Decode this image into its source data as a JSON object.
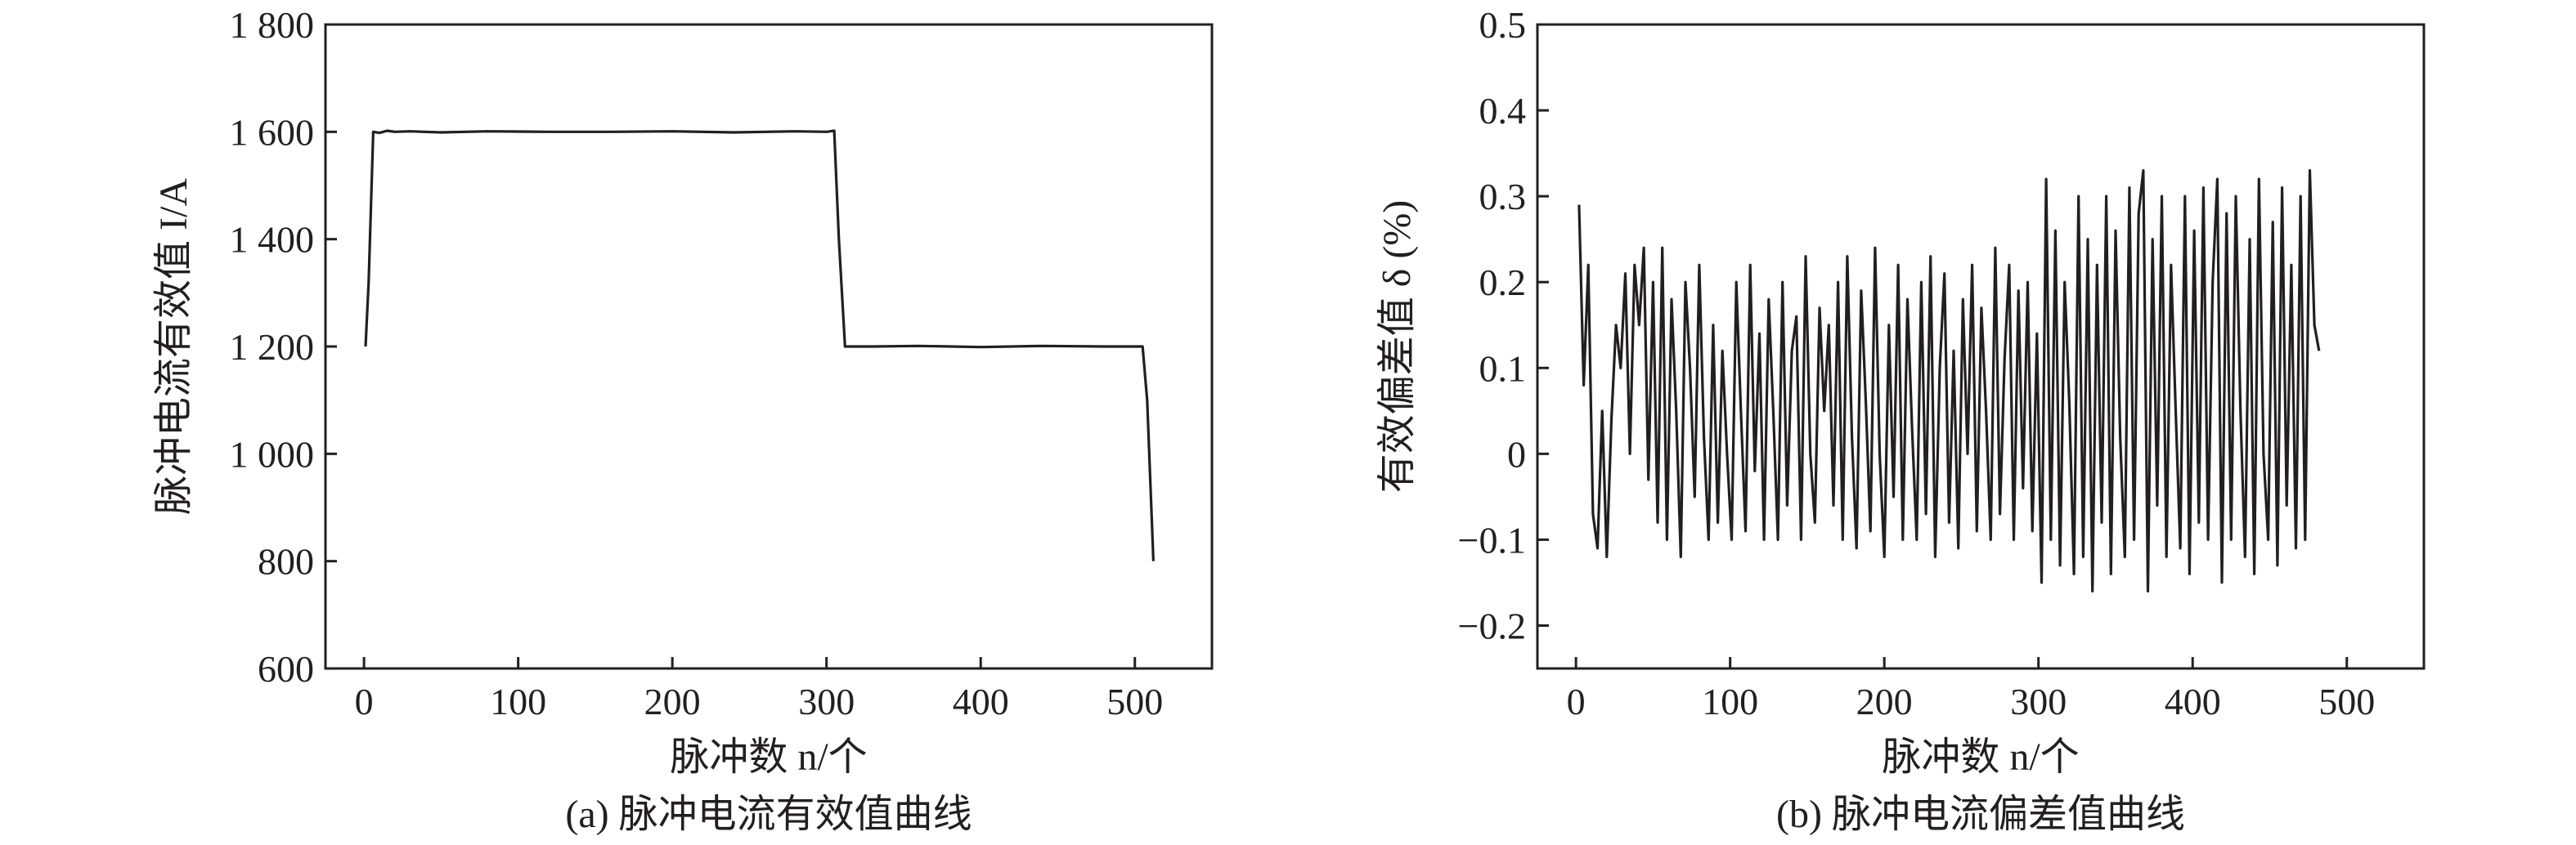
{
  "chart_data": [
    {
      "type": "line",
      "caption": "(a) 脉冲电流有效值曲线",
      "xlabel": "脉冲数 n/个",
      "ylabel": "脉冲电流有效值 I/A",
      "xlim": [
        -25,
        550
      ],
      "ylim": [
        600,
        1800
      ],
      "xticks": [
        0,
        100,
        200,
        300,
        400,
        500
      ],
      "xtick_labels": [
        "0",
        "100",
        "200",
        "300",
        "400",
        "500"
      ],
      "yticks": [
        600,
        800,
        1000,
        1200,
        1400,
        1600,
        1800
      ],
      "ytick_labels": [
        "600",
        "800",
        "1 000",
        "1 200",
        "1 400",
        "1 600",
        "1 800"
      ],
      "grid": false,
      "series": [
        {
          "x": [
            1,
            3,
            6,
            10,
            15,
            20,
            30,
            50,
            80,
            120,
            160,
            200,
            240,
            280,
            300,
            305,
            308,
            312,
            330,
            360,
            400,
            440,
            480,
            505,
            508,
            510,
            512
          ],
          "y": [
            1200,
            1320,
            1600,
            1598,
            1602,
            1600,
            1601,
            1599,
            1601,
            1600,
            1600,
            1601,
            1599,
            1601,
            1600,
            1602,
            1400,
            1200,
            1200,
            1201,
            1199,
            1201,
            1200,
            1200,
            1100,
            950,
            800
          ]
        }
      ]
    },
    {
      "type": "line",
      "caption": "(b) 脉冲电流偏差值曲线",
      "xlabel": "脉冲数 n/个",
      "ylabel": "有效偏差值 δ (%)",
      "xlim": [
        -25,
        550
      ],
      "ylim": [
        -0.25,
        0.5
      ],
      "xticks": [
        0,
        100,
        200,
        300,
        400,
        500
      ],
      "xtick_labels": [
        "0",
        "100",
        "200",
        "300",
        "400",
        "500"
      ],
      "yticks": [
        -0.2,
        -0.1,
        0,
        0.1,
        0.2,
        0.3,
        0.4,
        0.5
      ],
      "ytick_labels": [
        "−0.2",
        "−0.1",
        "0",
        "0.1",
        "0.2",
        "0.3",
        "0.4",
        "0.5"
      ],
      "grid": false,
      "series": [
        {
          "x_start": 2,
          "x_step": 3,
          "y": [
            0.29,
            0.08,
            0.22,
            -0.07,
            -0.11,
            0.05,
            -0.12,
            0.04,
            0.15,
            0.1,
            0.21,
            0.0,
            0.22,
            0.15,
            0.24,
            -0.03,
            0.2,
            -0.08,
            0.24,
            -0.1,
            0.18,
            0.05,
            -0.12,
            0.2,
            0.1,
            -0.05,
            0.22,
            0.02,
            -0.1,
            0.15,
            -0.08,
            0.12,
            0.0,
            -0.1,
            0.2,
            0.05,
            -0.09,
            0.22,
            -0.02,
            0.14,
            -0.1,
            0.18,
            0.05,
            -0.1,
            0.2,
            -0.06,
            0.12,
            0.16,
            -0.1,
            0.23,
            0.0,
            -0.08,
            0.17,
            0.05,
            0.15,
            -0.06,
            0.2,
            -0.1,
            0.23,
            0.02,
            -0.11,
            0.19,
            0.06,
            -0.09,
            0.24,
            0.0,
            -0.12,
            0.15,
            -0.05,
            0.22,
            -0.1,
            0.18,
            0.03,
            -0.1,
            0.2,
            -0.07,
            0.23,
            -0.12,
            0.1,
            0.21,
            -0.08,
            0.12,
            -0.11,
            0.18,
            0.0,
            0.22,
            -0.09,
            0.17,
            0.05,
            -0.1,
            0.24,
            -0.07,
            0.11,
            0.22,
            -0.1,
            0.19,
            -0.04,
            0.2,
            -0.09,
            0.14,
            -0.15,
            0.32,
            -0.1,
            0.26,
            -0.13,
            0.2,
            0.06,
            -0.14,
            0.3,
            -0.12,
            0.25,
            -0.16,
            0.22,
            -0.08,
            0.3,
            -0.14,
            0.26,
            0.02,
            -0.12,
            0.31,
            -0.1,
            0.28,
            0.33,
            -0.16,
            0.25,
            -0.06,
            0.3,
            -0.12,
            0.22,
            0.05,
            -0.11,
            0.3,
            -0.14,
            0.26,
            -0.08,
            0.31,
            -0.1,
            0.2,
            0.32,
            -0.15,
            0.28,
            -0.1,
            0.3,
            0.05,
            -0.12,
            0.25,
            -0.14,
            0.32,
            0.0,
            -0.1,
            0.27,
            -0.13,
            0.31,
            -0.06,
            0.22,
            -0.11,
            0.3,
            -0.1,
            0.33,
            0.15,
            0.12
          ]
        }
      ]
    }
  ]
}
